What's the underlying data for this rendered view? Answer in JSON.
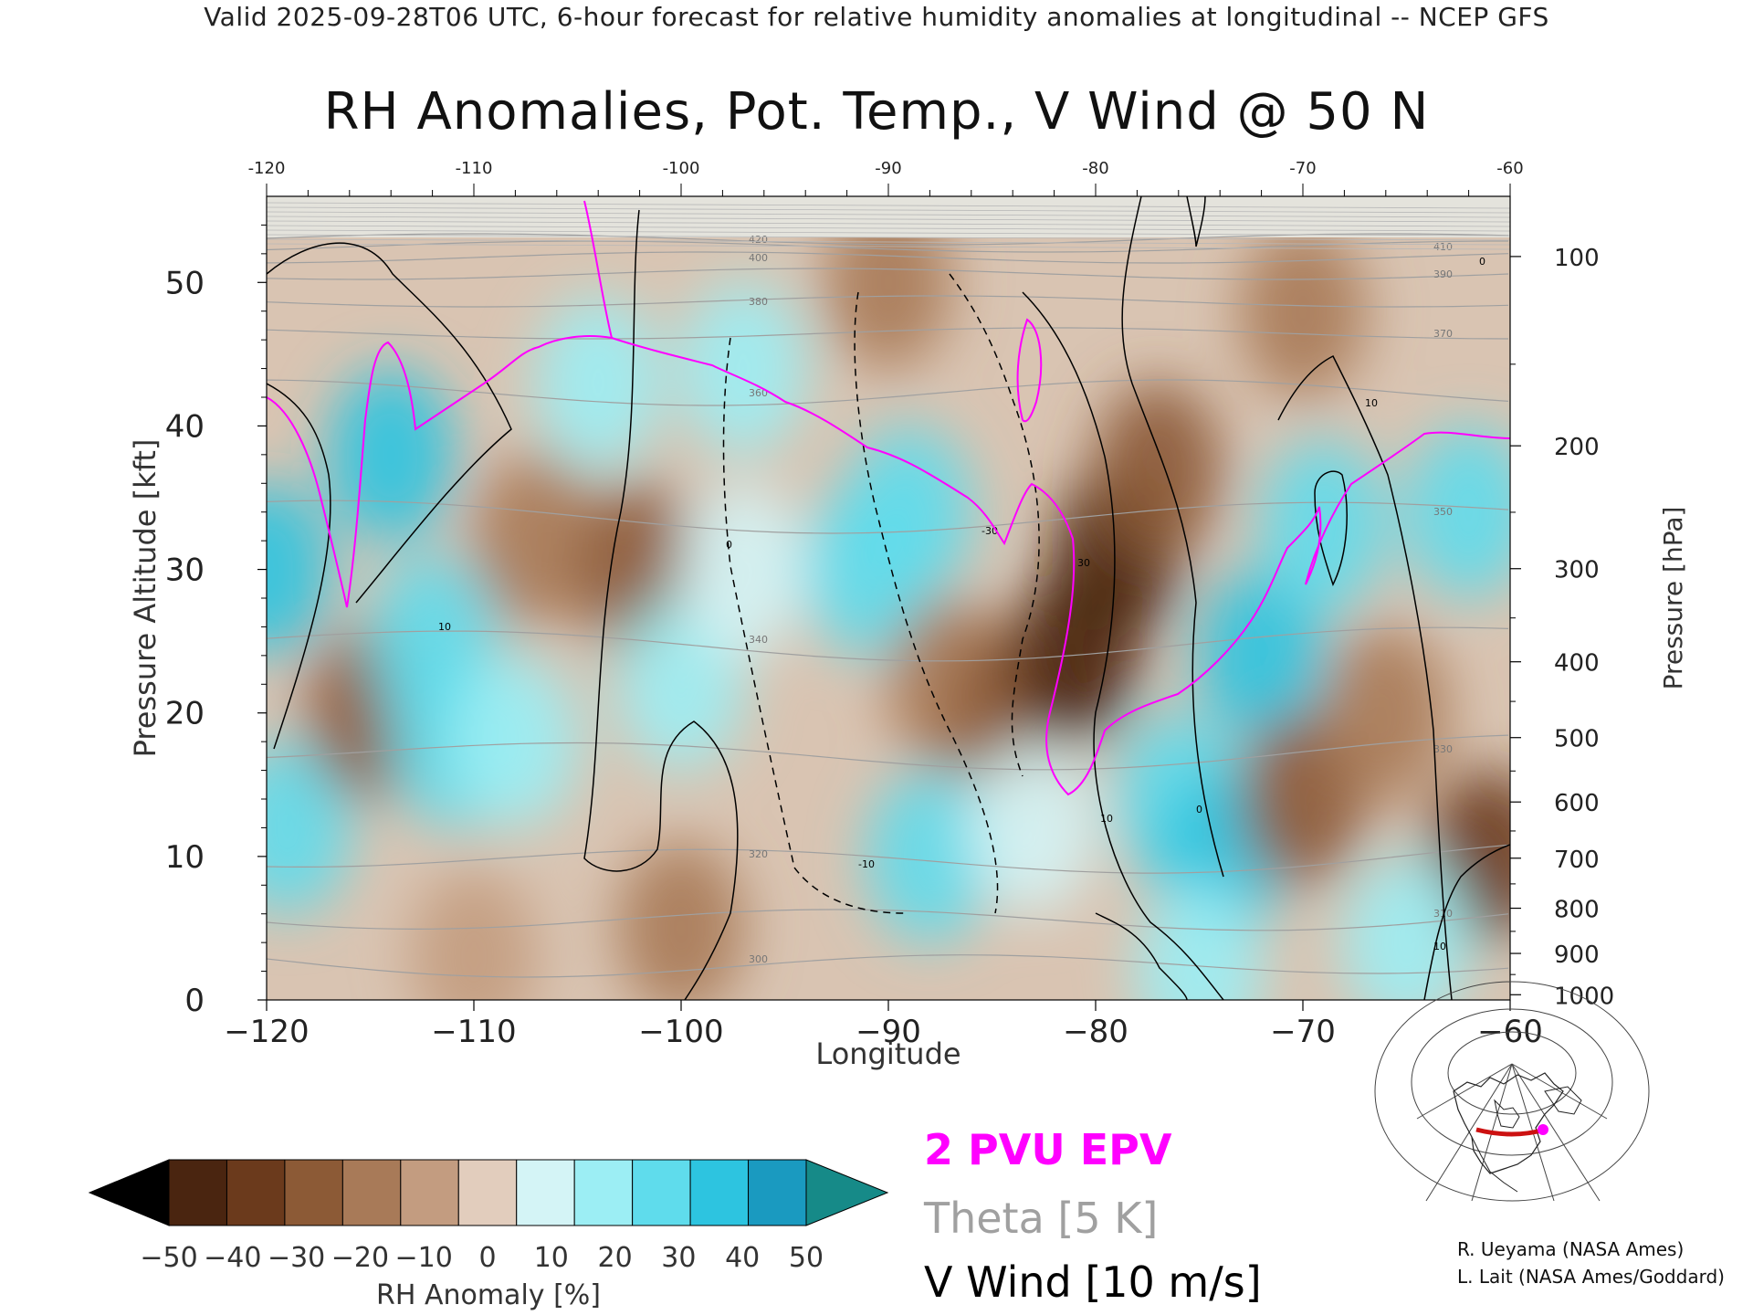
{
  "header": {
    "text": "Valid 2025-09-28T06 UTC, 6-hour forecast for relative humidity anomalies at longitudinal -- NCEP GFS"
  },
  "chart_data": {
    "type": "heatmap",
    "title": "RH Anomalies, Pot. Temp., V Wind @ 50 N",
    "xlabel": "Longitude",
    "ylabel": "Pressure Altitude [kft]",
    "y2label": "Pressure [hPa]",
    "xlim": [
      -120,
      -60
    ],
    "ylim": [
      0,
      56
    ],
    "x_ticks": [
      -120,
      -110,
      -100,
      -90,
      -80,
      -70,
      -60
    ],
    "x_tick_labels": [
      "−120",
      "−110",
      "−100",
      "−90",
      "−80",
      "−70",
      "−60"
    ],
    "top_tick_labels": [
      "-120",
      "-110",
      "-100",
      "-90",
      "-80",
      "-70",
      "-60"
    ],
    "y_ticks": [
      0,
      10,
      20,
      30,
      40,
      50
    ],
    "y_tick_labels": [
      "0",
      "10",
      "20",
      "30",
      "40",
      "50"
    ],
    "pressure_ticks": [
      1000,
      900,
      800,
      700,
      600,
      500,
      400,
      300,
      200,
      100
    ],
    "pressure_tick_labels": [
      "1000",
      "900",
      "800",
      "700",
      "600",
      "500",
      "400",
      "300",
      "200",
      "100"
    ],
    "theta_levels": [
      300,
      310,
      320,
      330,
      340,
      350,
      360,
      370,
      380,
      390,
      400,
      410,
      420
    ],
    "theta_labels": [
      "300",
      "310",
      "320",
      "330",
      "340",
      "350",
      "360",
      "370",
      "380",
      "390",
      "400",
      "410",
      "420"
    ],
    "vwind_labels": [
      "10",
      "0",
      "-10",
      "-30",
      "30",
      "10",
      "0",
      "10",
      "0",
      "10"
    ],
    "colorbar": {
      "label": "RH Anomaly [%]",
      "ticks": [
        -50,
        -40,
        -30,
        -20,
        -10,
        0,
        10,
        20,
        30,
        40,
        50
      ],
      "tick_labels": [
        "−50",
        "−40",
        "−30",
        "−20",
        "−10",
        "0",
        "10",
        "20",
        "30",
        "40",
        "50"
      ],
      "colors": [
        "#4a2510",
        "#6b3a1c",
        "#8c5a36",
        "#a87a58",
        "#c39c80",
        "#e2cdbd",
        "#d4f4f6",
        "#9ceef4",
        "#5fdcec",
        "#2dc4e0",
        "#1a9ac0"
      ],
      "under_color": "#000000",
      "over_color": "#168a88"
    },
    "legend": {
      "epv": "2 PVU EPV",
      "theta": "Theta [5 K]",
      "vwind": "V Wind [10 m/s]",
      "epv_color": "#ff00ff",
      "theta_color": "#a0a0a0",
      "vwind_color": "#000000"
    },
    "anomaly_features": [
      {
        "lon": -120,
        "alt": 30,
        "rh": 40
      },
      {
        "lon": -119,
        "alt": 12,
        "rh": 35
      },
      {
        "lon": -115,
        "alt": 20,
        "rh": -25
      },
      {
        "lon": -114,
        "alt": 38,
        "rh": 45
      },
      {
        "lon": -112,
        "alt": 25,
        "rh": 35
      },
      {
        "lon": -111,
        "alt": 18,
        "rh": 30
      },
      {
        "lon": -107,
        "alt": 32,
        "rh": -20
      },
      {
        "lon": -102,
        "alt": 30,
        "rh": -25
      },
      {
        "lon": -108,
        "alt": 18,
        "rh": 20
      },
      {
        "lon": -100,
        "alt": 22,
        "rh": 20
      },
      {
        "lon": -104,
        "alt": 43,
        "rh": 20
      },
      {
        "lon": -97,
        "alt": 44,
        "rh": 25
      },
      {
        "lon": -97,
        "alt": 30,
        "rh": 10
      },
      {
        "lon": -91,
        "alt": 30,
        "rh": 30
      },
      {
        "lon": -89,
        "alt": 34,
        "rh": 35
      },
      {
        "lon": -87,
        "alt": 22,
        "rh": -15
      },
      {
        "lon": -84,
        "alt": 20,
        "rh": -30
      },
      {
        "lon": -81,
        "alt": 24,
        "rh": -45
      },
      {
        "lon": -79,
        "alt": 31,
        "rh": -45
      },
      {
        "lon": -77,
        "alt": 37,
        "rh": -30
      },
      {
        "lon": -88,
        "alt": 10,
        "rh": 35
      },
      {
        "lon": -83,
        "alt": 12,
        "rh": 15
      },
      {
        "lon": -76,
        "alt": 14,
        "rh": 35
      },
      {
        "lon": -74,
        "alt": 10,
        "rh": 40
      },
      {
        "lon": -72,
        "alt": 24,
        "rh": 40
      },
      {
        "lon": -69,
        "alt": 33,
        "rh": 35
      },
      {
        "lon": -70,
        "alt": 14,
        "rh": -30
      },
      {
        "lon": -66,
        "alt": 20,
        "rh": -15
      },
      {
        "lon": -61,
        "alt": 10,
        "rh": -40
      },
      {
        "lon": -62,
        "alt": 34,
        "rh": 35
      },
      {
        "lon": -90,
        "alt": 50,
        "rh": -15
      },
      {
        "lon": -70,
        "alt": 48,
        "rh": -15
      },
      {
        "lon": -100,
        "alt": 5,
        "rh": -15
      },
      {
        "lon": -110,
        "alt": 3,
        "rh": -10
      },
      {
        "lon": -75,
        "alt": 2,
        "rh": 25
      },
      {
        "lon": -65,
        "alt": 4,
        "rh": 20
      }
    ]
  },
  "credits": {
    "line1": "R. Ueyama (NASA Ames)",
    "line2": "L. Lait (NASA Ames/Goddard)"
  },
  "inset_map": {
    "line_color": "#cc1111",
    "marker_color": "#ff00ff"
  }
}
